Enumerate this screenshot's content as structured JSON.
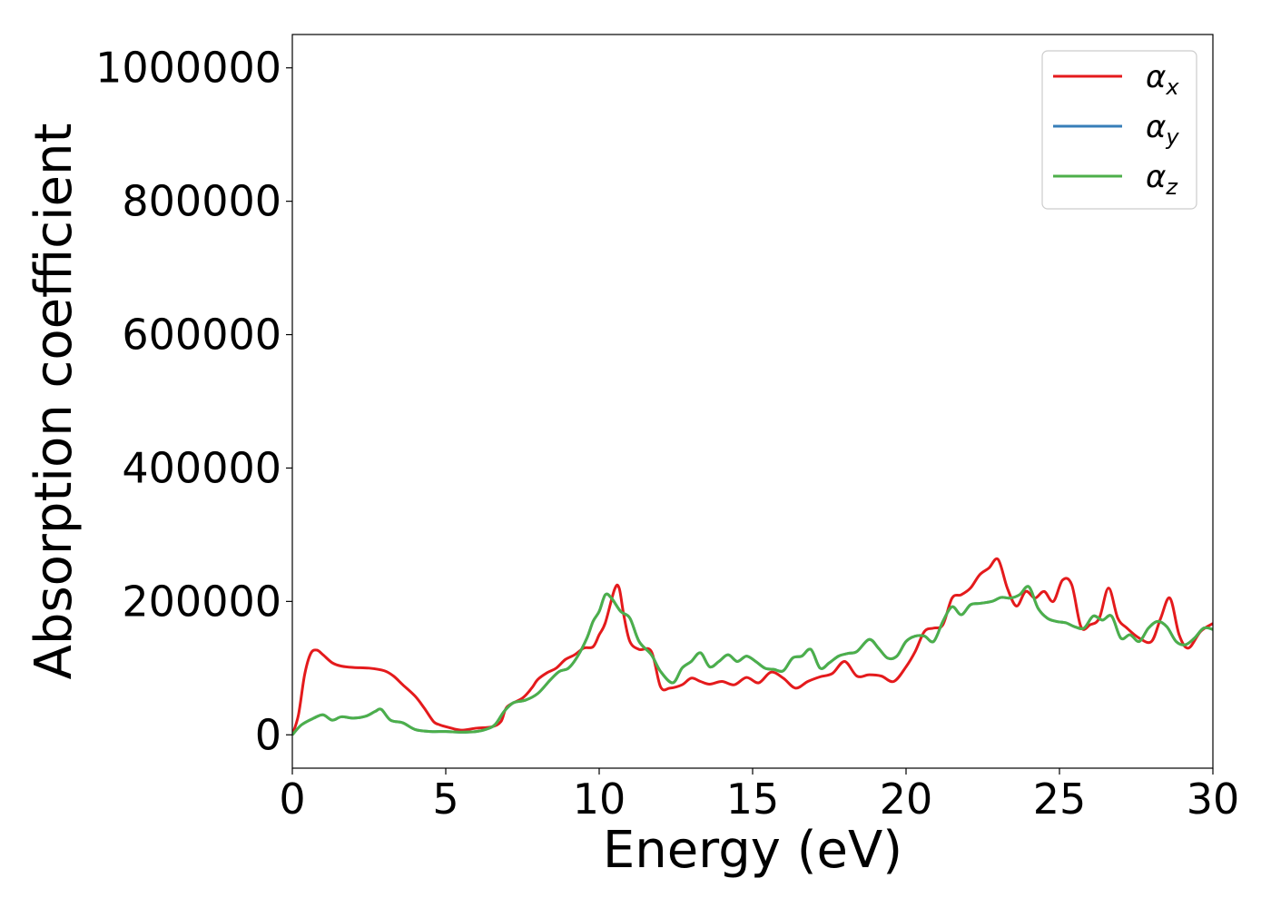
{
  "chart_data": {
    "type": "line",
    "xlabel": "Energy (eV)",
    "ylabel": "Absorption coefficient",
    "xlim": [
      0,
      30
    ],
    "ylim": [
      -50000,
      1050000
    ],
    "xticks": [
      0,
      5,
      10,
      15,
      20,
      25,
      30
    ],
    "yticks": [
      0,
      200000,
      400000,
      600000,
      800000,
      1000000
    ],
    "xtick_labels": [
      "0",
      "5",
      "10",
      "15",
      "20",
      "25",
      "30"
    ],
    "ytick_labels": [
      "0",
      "200000",
      "400000",
      "600000",
      "800000",
      "1000000"
    ],
    "grid": false,
    "legend_position": "top-right",
    "series": [
      {
        "name": "αx",
        "label_base": "α",
        "label_sub": "x",
        "color": "#e41a1c",
        "x": [
          0,
          0.2,
          0.4,
          0.6,
          0.8,
          1.0,
          1.3,
          1.6,
          2.0,
          2.5,
          3.0,
          3.3,
          3.6,
          4.0,
          4.3,
          4.6,
          4.8,
          5.1,
          5.5,
          6.0,
          6.5,
          6.8,
          7.0,
          7.5,
          7.8,
          8.0,
          8.3,
          8.6,
          8.9,
          9.2,
          9.5,
          9.8,
          10.0,
          10.2,
          10.5,
          10.65,
          10.8,
          11.0,
          11.3,
          11.7,
          12.0,
          12.3,
          12.7,
          13.0,
          13.3,
          13.6,
          14.0,
          14.4,
          14.8,
          15.2,
          15.6,
          16.0,
          16.4,
          16.8,
          17.2,
          17.6,
          18.0,
          18.4,
          18.8,
          19.2,
          19.6,
          20.0,
          20.3,
          20.6,
          20.9,
          21.2,
          21.5,
          21.8,
          22.1,
          22.4,
          22.7,
          23.0,
          23.3,
          23.6,
          23.9,
          24.2,
          24.5,
          24.8,
          25.1,
          25.4,
          25.7,
          26.0,
          26.3,
          26.6,
          26.9,
          27.2,
          27.6,
          28.0,
          28.3,
          28.6,
          28.9,
          29.2,
          29.6,
          30.0
        ],
        "y": [
          0,
          30000,
          90000,
          122000,
          127000,
          120000,
          108000,
          103000,
          101000,
          100000,
          96000,
          88000,
          75000,
          58000,
          40000,
          20000,
          15000,
          11000,
          7000,
          10000,
          12000,
          20000,
          42000,
          55000,
          70000,
          83000,
          93000,
          100000,
          113000,
          120000,
          130000,
          132000,
          150000,
          168000,
          218000,
          220000,
          180000,
          140000,
          128000,
          125000,
          72000,
          70000,
          75000,
          85000,
          80000,
          76000,
          80000,
          75000,
          86000,
          78000,
          94000,
          85000,
          70000,
          80000,
          87000,
          92000,
          110000,
          88000,
          90000,
          88000,
          80000,
          102000,
          125000,
          155000,
          160000,
          165000,
          205000,
          210000,
          220000,
          240000,
          250000,
          263000,
          220000,
          193000,
          215000,
          205000,
          215000,
          200000,
          232000,
          225000,
          162000,
          165000,
          175000,
          220000,
          175000,
          160000,
          145000,
          140000,
          175000,
          205000,
          150000,
          130000,
          155000,
          167000
        ]
      },
      {
        "name": "αy",
        "label_base": "α",
        "label_sub": "y",
        "color": "#377eb8",
        "x": [
          0,
          0.3,
          0.7,
          1.0,
          1.3,
          1.6,
          2.0,
          2.4,
          2.7,
          2.9,
          3.2,
          3.6,
          4.0,
          4.5,
          5.0,
          5.5,
          6.0,
          6.3,
          6.6,
          6.9,
          7.2,
          7.6,
          8.0,
          8.4,
          8.7,
          9.0,
          9.3,
          9.6,
          9.8,
          10.0,
          10.2,
          10.4,
          10.7,
          11.0,
          11.3,
          11.7,
          12.0,
          12.4,
          12.7,
          13.0,
          13.3,
          13.6,
          13.9,
          14.2,
          14.5,
          14.8,
          15.1,
          15.4,
          15.7,
          16.0,
          16.3,
          16.6,
          16.9,
          17.2,
          17.5,
          17.8,
          18.1,
          18.4,
          18.8,
          19.1,
          19.4,
          19.7,
          20.0,
          20.3,
          20.6,
          20.9,
          21.2,
          21.5,
          21.8,
          22.1,
          22.4,
          22.8,
          23.1,
          23.4,
          23.7,
          24.0,
          24.3,
          24.6,
          24.9,
          25.2,
          25.5,
          25.8,
          26.1,
          26.4,
          26.7,
          27.0,
          27.3,
          27.6,
          27.9,
          28.2,
          28.5,
          28.8,
          29.1,
          29.4,
          29.7,
          30.0
        ],
        "y": [
          0,
          15000,
          25000,
          30000,
          22000,
          27000,
          25000,
          28000,
          35000,
          38000,
          22000,
          18000,
          8000,
          5000,
          5000,
          4000,
          5000,
          8000,
          15000,
          35000,
          48000,
          52000,
          62000,
          82000,
          95000,
          100000,
          118000,
          145000,
          170000,
          185000,
          210000,
          205000,
          185000,
          175000,
          140000,
          120000,
          95000,
          78000,
          100000,
          110000,
          123000,
          102000,
          110000,
          120000,
          110000,
          118000,
          110000,
          100000,
          98000,
          96000,
          115000,
          118000,
          128000,
          100000,
          108000,
          118000,
          122000,
          125000,
          143000,
          130000,
          115000,
          118000,
          140000,
          148000,
          148000,
          140000,
          170000,
          192000,
          180000,
          195000,
          197000,
          200000,
          206000,
          205000,
          210000,
          222000,
          190000,
          175000,
          170000,
          168000,
          162000,
          160000,
          178000,
          172000,
          178000,
          145000,
          150000,
          140000,
          160000,
          170000,
          162000,
          140000,
          135000,
          145000,
          160000,
          158000
        ]
      },
      {
        "name": "αz",
        "label_base": "α",
        "label_sub": "z",
        "color": "#4daf4a",
        "x": [
          0,
          0.3,
          0.7,
          1.0,
          1.3,
          1.6,
          2.0,
          2.4,
          2.7,
          2.9,
          3.2,
          3.6,
          4.0,
          4.5,
          5.0,
          5.5,
          6.0,
          6.3,
          6.6,
          6.9,
          7.2,
          7.6,
          8.0,
          8.4,
          8.7,
          9.0,
          9.3,
          9.6,
          9.8,
          10.0,
          10.2,
          10.4,
          10.7,
          11.0,
          11.3,
          11.7,
          12.0,
          12.4,
          12.7,
          13.0,
          13.3,
          13.6,
          13.9,
          14.2,
          14.5,
          14.8,
          15.1,
          15.4,
          15.7,
          16.0,
          16.3,
          16.6,
          16.9,
          17.2,
          17.5,
          17.8,
          18.1,
          18.4,
          18.8,
          19.1,
          19.4,
          19.7,
          20.0,
          20.3,
          20.6,
          20.9,
          21.2,
          21.5,
          21.8,
          22.1,
          22.4,
          22.8,
          23.1,
          23.4,
          23.7,
          24.0,
          24.3,
          24.6,
          24.9,
          25.2,
          25.5,
          25.8,
          26.1,
          26.4,
          26.7,
          27.0,
          27.3,
          27.6,
          27.9,
          28.2,
          28.5,
          28.8,
          29.1,
          29.4,
          29.7,
          30.0
        ],
        "y": [
          0,
          15000,
          25000,
          30000,
          22000,
          27000,
          25000,
          28000,
          35000,
          38000,
          22000,
          18000,
          8000,
          5000,
          5000,
          4000,
          5000,
          8000,
          15000,
          35000,
          48000,
          52000,
          62000,
          82000,
          95000,
          100000,
          118000,
          145000,
          170000,
          185000,
          210000,
          205000,
          185000,
          175000,
          140000,
          120000,
          95000,
          78000,
          100000,
          110000,
          123000,
          102000,
          110000,
          120000,
          110000,
          118000,
          110000,
          100000,
          98000,
          96000,
          115000,
          118000,
          128000,
          100000,
          108000,
          118000,
          122000,
          125000,
          143000,
          130000,
          115000,
          118000,
          140000,
          148000,
          148000,
          140000,
          170000,
          192000,
          180000,
          195000,
          197000,
          200000,
          206000,
          205000,
          210000,
          222000,
          190000,
          175000,
          170000,
          168000,
          162000,
          160000,
          178000,
          172000,
          178000,
          145000,
          150000,
          140000,
          160000,
          170000,
          162000,
          140000,
          135000,
          145000,
          160000,
          158000
        ]
      }
    ]
  }
}
